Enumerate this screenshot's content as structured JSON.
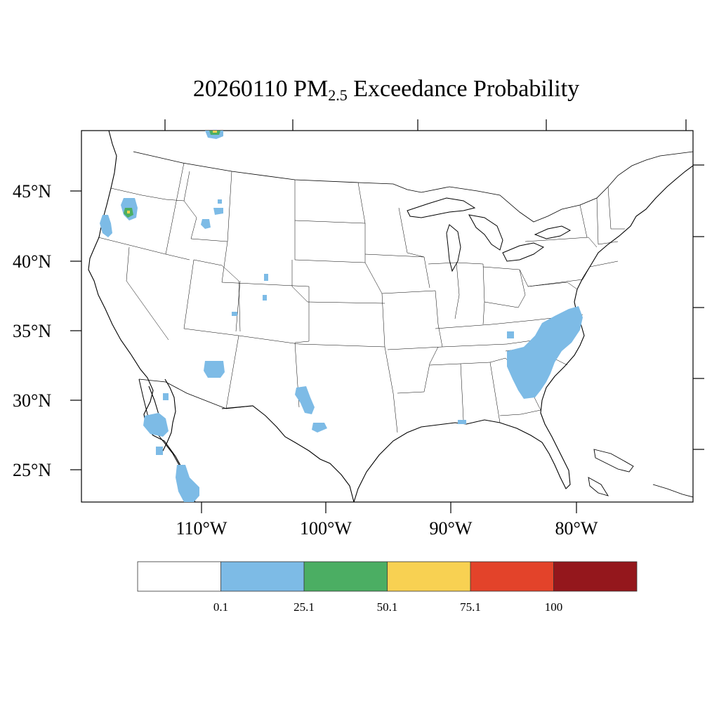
{
  "title": {
    "prefix": "20260110 PM",
    "subscript": "2.5",
    "suffix": " Exceedance Probability"
  },
  "map": {
    "latitude_labels": [
      "45°N",
      "40°N",
      "35°N",
      "30°N",
      "25°N"
    ],
    "longitude_labels": [
      "110°W",
      "100°W",
      "90°W",
      "80°W"
    ]
  },
  "legend": {
    "colors": [
      "#ffffff",
      "#7dbbe6",
      "#4bae63",
      "#f8d152",
      "#e3432a",
      "#94171c"
    ],
    "labels": [
      "0.1",
      "25.1",
      "50.1",
      "75.1",
      "100"
    ]
  },
  "colors": {
    "probability_low": "#7dbbe6",
    "probability_mid": "#4bae63",
    "probability_high": "#f8d152"
  }
}
